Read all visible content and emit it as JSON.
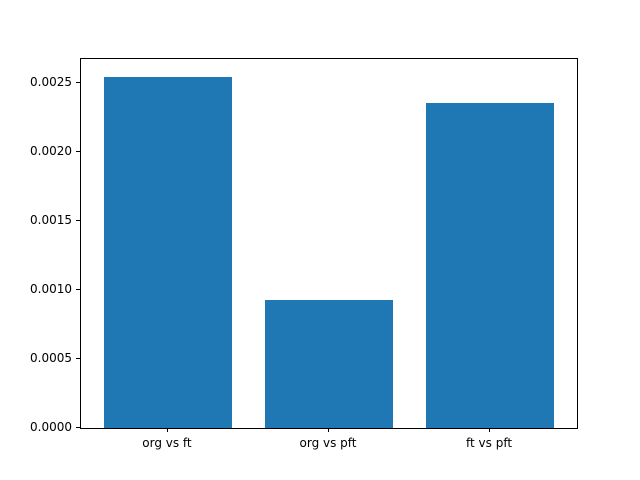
{
  "chart_data": {
    "type": "bar",
    "categories": [
      "org vs ft",
      "org vs pft",
      "ft vs pft"
    ],
    "values": [
      0.00255,
      0.00093,
      0.00236
    ],
    "title": "",
    "xlabel": "",
    "ylabel": "",
    "ylim": [
      0,
      0.0026775
    ],
    "xlim": [
      -0.54,
      2.54
    ],
    "yticks": [
      0.0,
      0.0005,
      0.001,
      0.0015,
      0.002,
      0.0025
    ],
    "ytick_decimals": 4,
    "bar_width": 0.8,
    "bar_color": "#1f77b4",
    "axis_color": "#000000",
    "background_color": "#ffffff",
    "grid": false,
    "legend": "none"
  }
}
